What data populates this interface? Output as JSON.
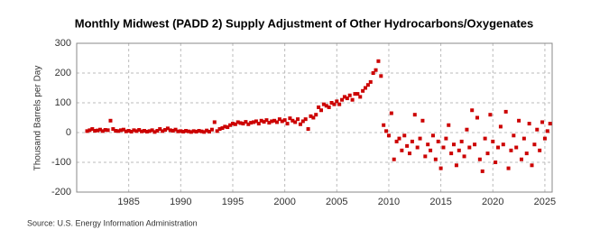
{
  "chart_data": {
    "type": "scatter",
    "title": "Monthly Midwest (PADD 2) Supply Adjustment of Other Hydrocarbons/Oxygenates",
    "y_label": "Thousand Barrels per Day",
    "source": "Source: U.S. Energy Information Administration",
    "color": "#cc0000",
    "grid": true,
    "xlim": [
      1980,
      2025.7
    ],
    "xticks": [
      1985,
      1990,
      1995,
      2000,
      2005,
      2010,
      2015,
      2020,
      2025
    ],
    "ylim": [
      -200,
      300
    ],
    "yticks": [
      -200,
      -100,
      0,
      100,
      200,
      300
    ],
    "series": [
      {
        "name": "Supply Adjustment",
        "color": "#cc0000",
        "x": [
          1981,
          1981.25,
          1981.5,
          1981.75,
          1982,
          1982.25,
          1982.5,
          1982.75,
          1983,
          1983.25,
          1983.5,
          1983.75,
          1984,
          1984.25,
          1984.5,
          1984.75,
          1985,
          1985.25,
          1985.5,
          1985.75,
          1986,
          1986.25,
          1986.5,
          1986.75,
          1987,
          1987.25,
          1987.5,
          1987.75,
          1988,
          1988.25,
          1988.5,
          1988.75,
          1989,
          1989.25,
          1989.5,
          1989.75,
          1990,
          1990.25,
          1990.5,
          1990.75,
          1991,
          1991.25,
          1991.5,
          1991.75,
          1992,
          1992.25,
          1992.5,
          1992.75,
          1993,
          1993.25,
          1993.5,
          1993.75,
          1994,
          1994.25,
          1994.5,
          1994.75,
          1995,
          1995.25,
          1995.5,
          1995.75,
          1996,
          1996.25,
          1996.5,
          1996.75,
          1997,
          1997.25,
          1997.5,
          1997.75,
          1998,
          1998.25,
          1998.5,
          1998.75,
          1999,
          1999.25,
          1999.5,
          1999.75,
          2000,
          2000.25,
          2000.5,
          2000.75,
          2001,
          2001.25,
          2001.5,
          2001.75,
          2002,
          2002.25,
          2002.5,
          2002.75,
          2003,
          2003.25,
          2003.5,
          2003.75,
          2004,
          2004.25,
          2004.5,
          2004.75,
          2005,
          2005.25,
          2005.5,
          2005.75,
          2006,
          2006.25,
          2006.5,
          2006.75,
          2007,
          2007.25,
          2007.5,
          2007.75,
          2008,
          2008.25,
          2008.5,
          2008.75,
          2009,
          2009.25,
          2009.5,
          2009.75,
          2010,
          2010.25,
          2010.5,
          2010.75,
          2011,
          2011.25,
          2011.5,
          2011.75,
          2012,
          2012.25,
          2012.5,
          2012.75,
          2013,
          2013.25,
          2013.5,
          2013.75,
          2014,
          2014.25,
          2014.5,
          2014.75,
          2015,
          2015.25,
          2015.5,
          2015.75,
          2016,
          2016.25,
          2016.5,
          2016.75,
          2017,
          2017.25,
          2017.5,
          2017.75,
          2018,
          2018.25,
          2018.5,
          2018.75,
          2019,
          2019.25,
          2019.5,
          2019.75,
          2020,
          2020.25,
          2020.5,
          2020.75,
          2021,
          2021.25,
          2021.5,
          2021.75,
          2022,
          2022.25,
          2022.5,
          2022.75,
          2023,
          2023.25,
          2023.5,
          2023.75,
          2024,
          2024.25,
          2024.5,
          2024.75,
          2025,
          2025.25,
          2025.5
        ],
        "values": [
          5,
          8,
          12,
          6,
          7,
          10,
          5,
          9,
          8,
          40,
          12,
          6,
          5,
          8,
          10,
          4,
          6,
          3,
          8,
          5,
          9,
          4,
          6,
          3,
          5,
          8,
          2,
          6,
          12,
          5,
          9,
          14,
          8,
          6,
          10,
          4,
          5,
          3,
          6,
          4,
          2,
          5,
          3,
          6,
          4,
          2,
          7,
          3,
          10,
          35,
          5,
          12,
          15,
          20,
          18,
          25,
          30,
          28,
          35,
          32,
          30,
          36,
          28,
          33,
          35,
          38,
          30,
          40,
          36,
          42,
          33,
          38,
          40,
          35,
          45,
          38,
          42,
          30,
          48,
          40,
          35,
          45,
          28,
          38,
          45,
          12,
          55,
          50,
          60,
          85,
          75,
          95,
          90,
          85,
          100,
          95,
          105,
          95,
          110,
          120,
          115,
          125,
          110,
          130,
          130,
          120,
          140,
          150,
          160,
          170,
          200,
          210,
          240,
          190,
          25,
          5,
          -10,
          65,
          -90,
          -30,
          -20,
          -60,
          -10,
          -45,
          -70,
          -30,
          60,
          -50,
          -20,
          40,
          -80,
          -40,
          -60,
          -10,
          -90,
          -30,
          -120,
          -50,
          -20,
          25,
          -70,
          -40,
          -110,
          -60,
          -30,
          -80,
          10,
          -50,
          75,
          -40,
          50,
          -90,
          -130,
          -20,
          -70,
          60,
          -30,
          -100,
          -50,
          20,
          -40,
          70,
          -120,
          -60,
          -10,
          -50,
          40,
          -90,
          -20,
          -70,
          30,
          -110,
          -40,
          10,
          -60,
          35,
          -20,
          5,
          30
        ]
      }
    ]
  }
}
